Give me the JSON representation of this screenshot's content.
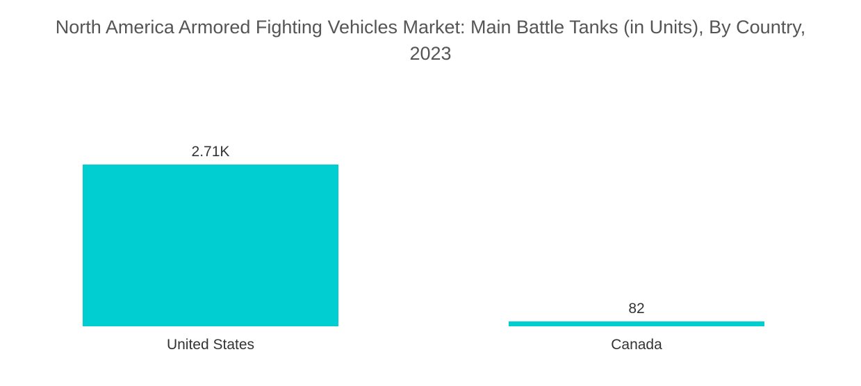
{
  "chart_data": {
    "type": "bar",
    "title_line1": "North America Armored Fighting Vehicles Market: Main Battle Tanks (in Units), By Country,",
    "title_line2": "2023",
    "categories": [
      "United States",
      "Canada"
    ],
    "values": [
      2710,
      82
    ],
    "data_labels": [
      "2.71K",
      "82"
    ],
    "bar_color": "#00CED1",
    "xlabel": "",
    "ylabel": "",
    "ylim": [
      0,
      2710
    ],
    "grid": false,
    "legend": "none"
  }
}
